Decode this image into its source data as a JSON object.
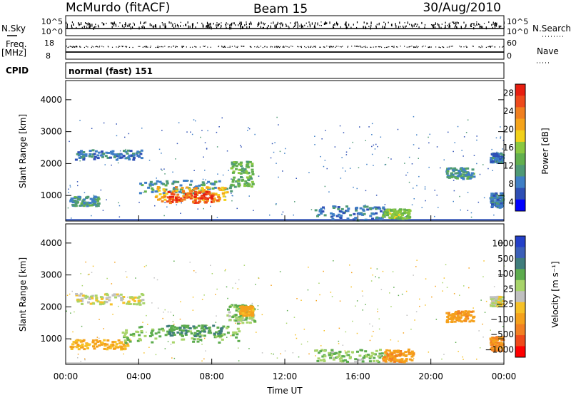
{
  "header": {
    "station": "McMurdo (fitACF)",
    "beam": "Beam 15",
    "date": "30/Aug/2010"
  },
  "top_panels": {
    "nsky_label": "N.Sky",
    "nsky_ticks": [
      "10^5",
      "10^0"
    ],
    "nsearch_label": "N.Search",
    "nsearch_ticks": [
      "10^5",
      "10^0"
    ],
    "freq_label": "Freq.",
    "freq_unit": "[MHz]",
    "freq_ticks": [
      "18",
      "8"
    ],
    "nave_label": "Nave",
    "nave_ticks": [
      "60",
      "0"
    ],
    "cpid_label": "CPID",
    "cpid_value": "normal (fast) 151"
  },
  "colors": {
    "power_scale": [
      "#0000ff",
      "#2e4fb5",
      "#3f7fc6",
      "#4f9a76",
      "#62b04e",
      "#8ac840",
      "#f2d11a",
      "#f5a41b",
      "#f07f1f",
      "#ee4a1c",
      "#e81e10"
    ],
    "velocity_scale": [
      "#ff0000",
      "#ef4a1a",
      "#f28022",
      "#f5a11c",
      "#f6c127",
      "#c0c0c0",
      "#a8d46a",
      "#5dac4e",
      "#3f7d7c",
      "#3b5fb8",
      "#2440c8"
    ]
  },
  "chart_data": [
    {
      "type": "heatmap",
      "quantity": "Power",
      "ylabel": "Slant Range [km]",
      "yticks": [
        "1000",
        "2000",
        "3000",
        "4000"
      ],
      "ylim": [
        200,
        4600
      ],
      "xlabel": "Time UT",
      "xticks": [
        "00:00",
        "04:00",
        "08:00",
        "12:00",
        "16:00",
        "20:00",
        "00:00"
      ],
      "xlim_hours": [
        0,
        24
      ],
      "colorbar": {
        "label": "Power [dB]",
        "ticks": [
          "4",
          "8",
          "12",
          "16",
          "20",
          "24",
          "28"
        ],
        "range": [
          0,
          30
        ]
      },
      "regions": [
        {
          "t0": 0.5,
          "t1": 4.2,
          "r0": 2150,
          "r1": 2450,
          "value": 7
        },
        {
          "t0": 0.2,
          "t1": 1.8,
          "r0": 700,
          "r1": 1000,
          "value": 9
        },
        {
          "t0": 4.0,
          "t1": 9.0,
          "r0": 1100,
          "r1": 1500,
          "value": 9
        },
        {
          "t0": 4.8,
          "t1": 8.8,
          "r0": 850,
          "r1": 1300,
          "value": 20
        },
        {
          "t0": 5.5,
          "t1": 8.3,
          "r0": 800,
          "r1": 1150,
          "value": 26
        },
        {
          "t0": 9.0,
          "t1": 10.2,
          "r0": 1300,
          "r1": 2100,
          "value": 12
        },
        {
          "t0": 13.5,
          "t1": 17.5,
          "r0": 250,
          "r1": 700,
          "value": 7
        },
        {
          "t0": 17.3,
          "t1": 18.8,
          "r0": 300,
          "r1": 600,
          "value": 14
        },
        {
          "t0": 20.8,
          "t1": 22.3,
          "r0": 1550,
          "r1": 1900,
          "value": 9
        },
        {
          "t0": 23.2,
          "t1": 23.9,
          "r0": 650,
          "r1": 1100,
          "value": 7
        },
        {
          "t0": 23.2,
          "t1": 23.9,
          "r0": 2050,
          "r1": 2350,
          "value": 6
        }
      ]
    },
    {
      "type": "heatmap",
      "quantity": "Velocity",
      "ylabel": "Slant Range [km]",
      "yticks": [
        "1000",
        "2000",
        "3000",
        "4000"
      ],
      "ylim": [
        200,
        4600
      ],
      "xlabel": "Time UT",
      "xticks": [
        "00:00",
        "04:00",
        "08:00",
        "12:00",
        "16:00",
        "20:00",
        "00:00"
      ],
      "xlim_hours": [
        0,
        24
      ],
      "colorbar": {
        "label": "Velocity [m s⁻¹]",
        "ticks": [
          "1000",
          "500",
          "100",
          "25",
          "−25",
          "−100",
          "−500",
          "−1000"
        ],
        "range": [
          -1000,
          1000
        ]
      },
      "regions": [
        {
          "t0": 0.5,
          "t1": 4.2,
          "r0": 2100,
          "r1": 2450,
          "value": 0
        },
        {
          "t0": 0.2,
          "t1": 3.5,
          "r0": 700,
          "r1": 1000,
          "value": -120
        },
        {
          "t0": 3.0,
          "t1": 9.5,
          "r0": 900,
          "r1": 1450,
          "value": 120
        },
        {
          "t0": 5.5,
          "t1": 8.5,
          "r0": 1100,
          "r1": 1450,
          "value": 250
        },
        {
          "t0": 8.8,
          "t1": 10.3,
          "r0": 1500,
          "r1": 2100,
          "value": 80
        },
        {
          "t0": 9.5,
          "t1": 10.2,
          "r0": 1750,
          "r1": 2050,
          "value": -150
        },
        {
          "t0": 13.5,
          "t1": 17.5,
          "r0": 300,
          "r1": 700,
          "value": 90
        },
        {
          "t0": 17.3,
          "t1": 19.0,
          "r0": 300,
          "r1": 700,
          "value": -200
        },
        {
          "t0": 20.8,
          "t1": 22.3,
          "r0": 1550,
          "r1": 1900,
          "value": -200
        },
        {
          "t0": 23.2,
          "t1": 23.9,
          "r0": 650,
          "r1": 1100,
          "value": -250
        },
        {
          "t0": 23.2,
          "t1": 23.9,
          "r0": 2050,
          "r1": 2350,
          "value": 0
        }
      ]
    }
  ]
}
